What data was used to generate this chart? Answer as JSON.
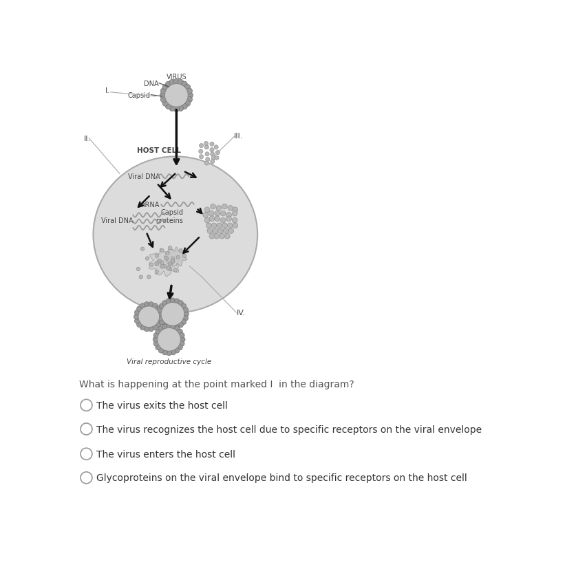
{
  "bg_color": "#ffffff",
  "question_text": "What is happening at the point marked I  in the diagram?",
  "options": [
    "The virus exits the host cell",
    "The virus recognizes the host cell due to specific receptors on the viral envelope",
    "The virus enters the host cell",
    "Glycoproteins on the viral envelope bind to specific receptors on the host cell"
  ],
  "diagram_labels": {
    "virus": "VIRUS",
    "dna": "DNA",
    "capsid": "Capsid",
    "host_cell": "HOST CELL",
    "viral_dna_1": "Viral DNA",
    "mrna": "mRNA",
    "viral_dna_2": "Viral DNA",
    "capsid_proteins": "Capsid\nproteins",
    "cycle_label": "Viral reproductive cycle",
    "roman_I": "I.",
    "roman_II": "II.",
    "roman_III": "III.",
    "roman_IV": "IV."
  },
  "colors": {
    "host_cell_fill": "#dcdcdc",
    "host_cell_edge": "#aaaaaa",
    "virus_body": "#c8c8c8",
    "virus_spikes": "#999999",
    "arrow_color": "#111111",
    "label_color": "#444444",
    "question_color": "#555555",
    "option_color": "#333333",
    "radio_edge": "#999999",
    "wavy_color": "#888888",
    "dot_color": "#b0b0b0",
    "dot_edge": "#888888"
  }
}
